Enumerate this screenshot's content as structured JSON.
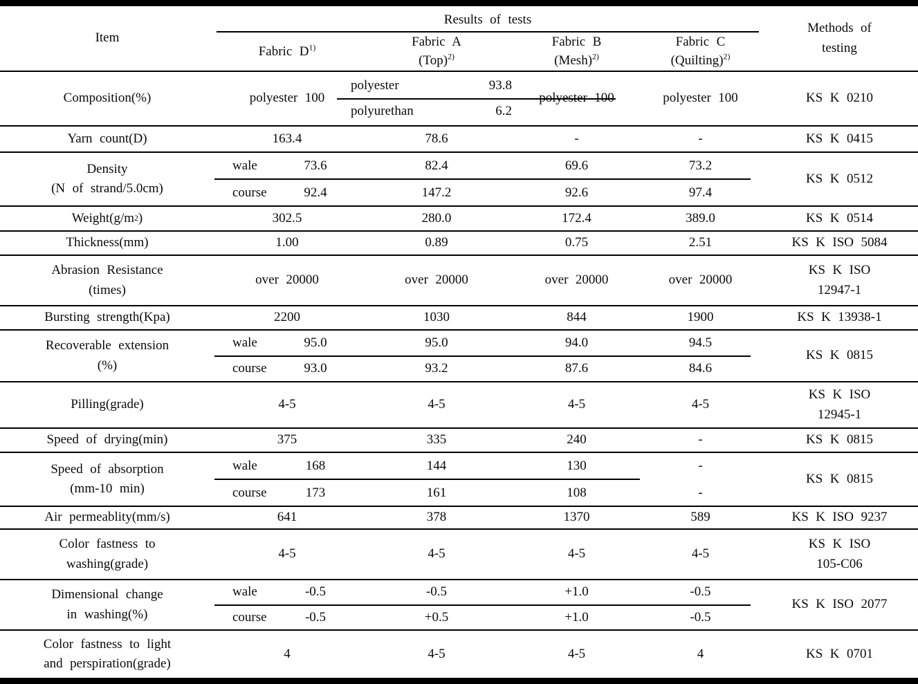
{
  "header": {
    "item": "Item",
    "results": "Results of tests",
    "methods": [
      "Methods of",
      "testing"
    ],
    "fabrics": [
      {
        "line1": "Fabric D",
        "sup": "1)"
      },
      {
        "line1": "Fabric A",
        "line2": "(Top)",
        "sup": "2)"
      },
      {
        "line1": "Fabric B",
        "line2": "(Mesh)",
        "sup": "2)"
      },
      {
        "line1": "Fabric C",
        "line2": "(Quilting)",
        "sup": "2)"
      }
    ]
  },
  "rows": {
    "composition": {
      "label": [
        "Composition(%)"
      ],
      "d": "polyester 100",
      "a": {
        "pairs": [
          {
            "name": "polyester",
            "value": "93.8"
          },
          {
            "name": "polyurethan",
            "value": "6.2"
          }
        ]
      },
      "b": "polyester 100",
      "c": "polyester 100",
      "method": [
        "KS K 0210"
      ]
    },
    "yarn": {
      "label": [
        "Yarn count(D)"
      ],
      "values": [
        "163.4",
        "78.6",
        "-",
        "-"
      ],
      "method": [
        "KS K 0415"
      ]
    },
    "density": {
      "label": [
        "Density",
        "(N of strand/5.0cm)"
      ],
      "sub1": "wale",
      "sub2": "course",
      "r1": [
        "73.6",
        "82.4",
        "69.6",
        "73.2"
      ],
      "r2": [
        "92.4",
        "147.2",
        "92.6",
        "97.4"
      ],
      "method": [
        "KS K 0512"
      ]
    },
    "weight": {
      "label_parts": {
        "pre": "Weight(g/m",
        "sup": "2",
        "post": ")"
      },
      "values": [
        "302.5",
        "280.0",
        "172.4",
        "389.0"
      ],
      "method": [
        "KS K 0514"
      ]
    },
    "thickness": {
      "label": [
        "Thickness(mm)"
      ],
      "values": [
        "1.00",
        "0.89",
        "0.75",
        "2.51"
      ],
      "method": [
        "KS K ISO 5084"
      ]
    },
    "abrasion": {
      "label": [
        "Abrasion Resistance",
        "(times)"
      ],
      "values": [
        "over 20000",
        "over 20000",
        "over 20000",
        "over 20000"
      ],
      "method": [
        "KS K ISO",
        "12947-1"
      ]
    },
    "bursting": {
      "label": [
        "Bursting strength(Kpa)"
      ],
      "values": [
        "2200",
        "1030",
        "844",
        "1900"
      ],
      "method": [
        "KS K 13938-1"
      ]
    },
    "recoverable": {
      "label": [
        "Recoverable extension",
        "(%)"
      ],
      "sub1": "wale",
      "sub2": "course",
      "r1": [
        "95.0",
        "95.0",
        "94.0",
        "94.5"
      ],
      "r2": [
        "93.0",
        "93.2",
        "87.6",
        "84.6"
      ],
      "method": [
        "KS K 0815"
      ]
    },
    "pilling": {
      "label": [
        "Pilling(grade)"
      ],
      "values": [
        "4-5",
        "4-5",
        "4-5",
        "4-5"
      ],
      "method": [
        "KS K ISO",
        "12945-1"
      ]
    },
    "drying": {
      "label": [
        "Speed of drying(min)"
      ],
      "values": [
        "375",
        "335",
        "240",
        "-"
      ],
      "method": [
        "KS K 0815"
      ]
    },
    "absorption": {
      "label": [
        "Speed of absorption",
        "(mm-10 min)"
      ],
      "sub1": "wale",
      "sub2": "course",
      "r1": [
        "168",
        "144",
        "130",
        "-"
      ],
      "r2": [
        "173",
        "161",
        "108",
        "-"
      ],
      "method": [
        "KS K 0815"
      ]
    },
    "air": {
      "label": [
        "Air permeablity(mm/s)"
      ],
      "values": [
        "641",
        "378",
        "1370",
        "589"
      ],
      "method": [
        "KS K ISO 9237"
      ]
    },
    "washing": {
      "label": [
        "Color fastness to",
        "washing(grade)"
      ],
      "values": [
        "4-5",
        "4-5",
        "4-5",
        "4-5"
      ],
      "method": [
        "KS K ISO",
        "105-C06"
      ]
    },
    "dimensional": {
      "label": [
        "Dimensional change",
        "in washing(%)"
      ],
      "sub1": "wale",
      "sub2": "course",
      "r1": [
        "-0.5",
        "-0.5",
        "+1.0",
        "-0.5"
      ],
      "r2": [
        "-0.5",
        "+0.5",
        "+1.0",
        "-0.5"
      ],
      "method": [
        "KS K ISO 2077"
      ]
    },
    "light": {
      "label": [
        "Color fastness to light",
        "and perspiration(grade)"
      ],
      "values": [
        "4",
        "4-5",
        "4-5",
        "4"
      ],
      "method": [
        "KS K 0701"
      ]
    }
  }
}
